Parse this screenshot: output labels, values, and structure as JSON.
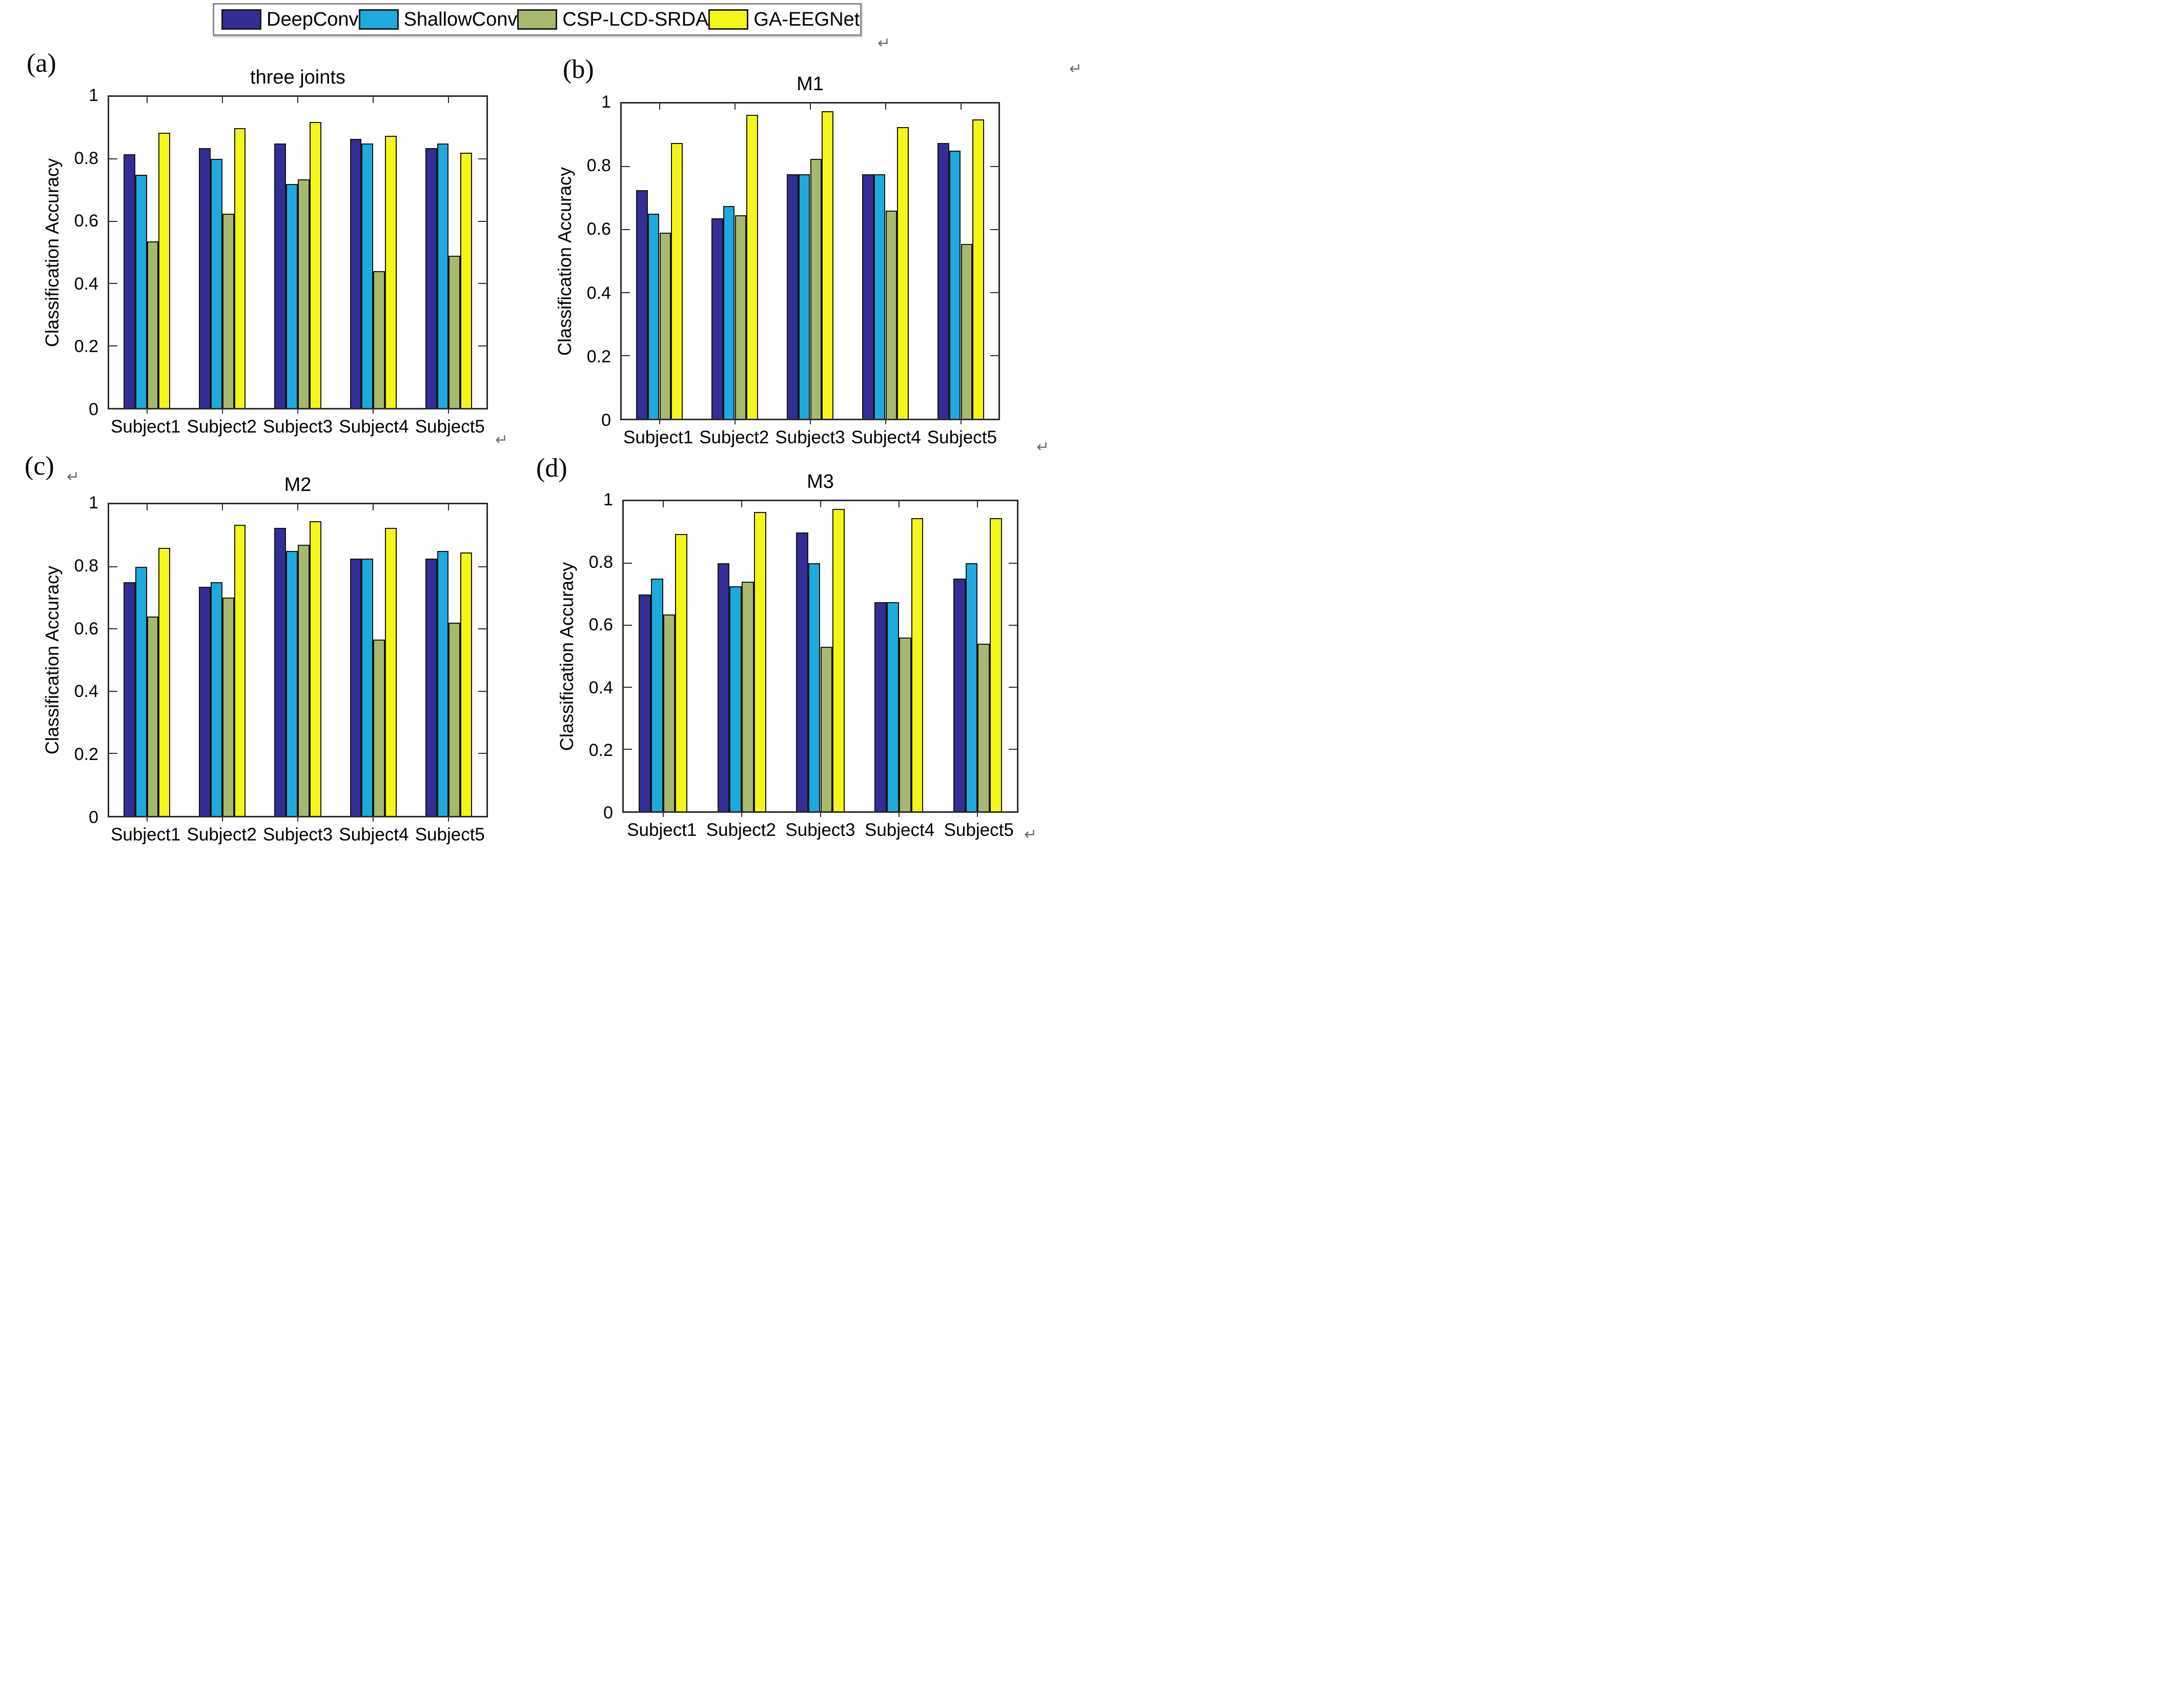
{
  "page": {
    "background": "#ffffff"
  },
  "legend": {
    "items": [
      {
        "label": "DeepConv",
        "color": "#322e96"
      },
      {
        "label": "ShallowConv",
        "color": "#1fa9dc"
      },
      {
        "label": "CSP-LCD-SRDA",
        "color": "#a6b96e"
      },
      {
        "label": "GA-EEGNet",
        "color": "#f3f617"
      }
    ]
  },
  "panel_labels": [
    "(a)",
    "(b)",
    "(c)",
    "(d)"
  ],
  "return_mark": {
    "glyph": "↵"
  },
  "chart_data": [
    {
      "type": "bar",
      "panel": "(a)",
      "title": "three joints",
      "xlabel": "",
      "ylabel": "Classification Accuracy",
      "ylim": [
        0,
        1
      ],
      "yticks": [
        0,
        0.2,
        0.4,
        0.6,
        0.8,
        1
      ],
      "grid": false,
      "legend_position": "top-outside-shared",
      "categories": [
        "Subject1",
        "Subject2",
        "Subject3",
        "Subject4",
        "Subject5"
      ],
      "series": [
        {
          "name": "DeepConv",
          "values": [
            0.815,
            0.835,
            0.85,
            0.865,
            0.835
          ]
        },
        {
          "name": "ShallowConv",
          "values": [
            0.75,
            0.8,
            0.72,
            0.85,
            0.85
          ]
        },
        {
          "name": "CSP-LCD-SRDA",
          "values": [
            0.535,
            0.625,
            0.735,
            0.44,
            0.49
          ]
        },
        {
          "name": "GA-EEGNet",
          "values": [
            0.885,
            0.9,
            0.92,
            0.875,
            0.82
          ]
        }
      ]
    },
    {
      "type": "bar",
      "panel": "(b)",
      "title": "M1",
      "xlabel": "",
      "ylabel": "Classification Accuracy",
      "ylim": [
        0,
        1
      ],
      "yticks": [
        0,
        0.2,
        0.4,
        0.6,
        0.8,
        1
      ],
      "grid": false,
      "legend_position": "top-outside-shared",
      "categories": [
        "Subject1",
        "Subject2",
        "Subject3",
        "Subject4",
        "Subject5"
      ],
      "series": [
        {
          "name": "DeepConv",
          "values": [
            0.725,
            0.635,
            0.775,
            0.775,
            0.875
          ]
        },
        {
          "name": "ShallowConv",
          "values": [
            0.65,
            0.675,
            0.775,
            0.775,
            0.85
          ]
        },
        {
          "name": "CSP-LCD-SRDA",
          "values": [
            0.59,
            0.645,
            0.825,
            0.66,
            0.555
          ]
        },
        {
          "name": "GA-EEGNet",
          "values": [
            0.875,
            0.965,
            0.975,
            0.925,
            0.95
          ]
        }
      ]
    },
    {
      "type": "bar",
      "panel": "(c)",
      "title": "M2",
      "xlabel": "",
      "ylabel": "Classification Accuracy",
      "ylim": [
        0,
        1
      ],
      "yticks": [
        0,
        0.2,
        0.4,
        0.6,
        0.8,
        1
      ],
      "grid": false,
      "legend_position": "top-outside-shared",
      "categories": [
        "Subject1",
        "Subject2",
        "Subject3",
        "Subject4",
        "Subject5"
      ],
      "series": [
        {
          "name": "DeepConv",
          "values": [
            0.75,
            0.735,
            0.925,
            0.825,
            0.825
          ]
        },
        {
          "name": "ShallowConv",
          "values": [
            0.8,
            0.75,
            0.85,
            0.825,
            0.85
          ]
        },
        {
          "name": "CSP-LCD-SRDA",
          "values": [
            0.64,
            0.7,
            0.87,
            0.565,
            0.62
          ]
        },
        {
          "name": "GA-EEGNet",
          "values": [
            0.86,
            0.935,
            0.945,
            0.925,
            0.845
          ]
        }
      ]
    },
    {
      "type": "bar",
      "panel": "(d)",
      "title": "M3",
      "xlabel": "",
      "ylabel": "Classification Accuracy",
      "ylim": [
        0,
        1
      ],
      "yticks": [
        0,
        0.2,
        0.4,
        0.6,
        0.8,
        1
      ],
      "grid": false,
      "legend_position": "top-outside-shared",
      "categories": [
        "Subject1",
        "Subject2",
        "Subject3",
        "Subject4",
        "Subject5"
      ],
      "series": [
        {
          "name": "DeepConv",
          "values": [
            0.7,
            0.8,
            0.9,
            0.675,
            0.75
          ]
        },
        {
          "name": "ShallowConv",
          "values": [
            0.75,
            0.725,
            0.8,
            0.675,
            0.8
          ]
        },
        {
          "name": "CSP-LCD-SRDA",
          "values": [
            0.635,
            0.74,
            0.53,
            0.56,
            0.54
          ]
        },
        {
          "name": "GA-EEGNet",
          "values": [
            0.895,
            0.965,
            0.975,
            0.945,
            0.945
          ]
        }
      ]
    }
  ]
}
